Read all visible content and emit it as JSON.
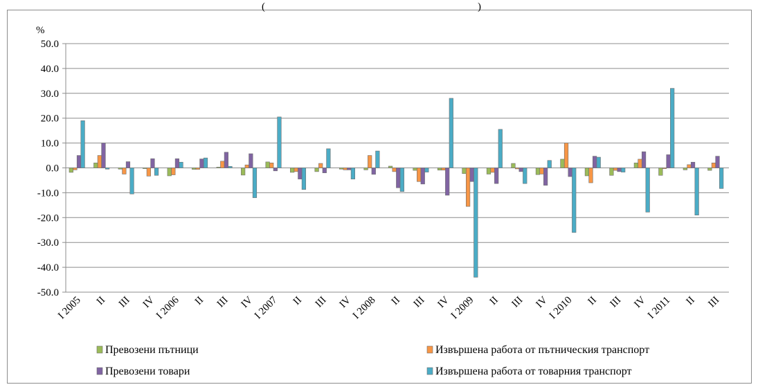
{
  "chart_data": {
    "type": "bar",
    "title": "",
    "top_text_fragment": "(",
    "top_text_fragment_right": ")",
    "ylabel": "%",
    "xlabel": "",
    "ylim": [
      -50,
      50
    ],
    "yticks": [
      "50.0",
      "40.0",
      "30.0",
      "20.0",
      "10.0",
      "0.0",
      "-10.0",
      "-20.0",
      "-30.0",
      "-40.0",
      "-50.0"
    ],
    "grid": true,
    "legend_position": "bottom",
    "categories": [
      "I 2005",
      "II",
      "III",
      "IV",
      "I 2006",
      "II",
      "III",
      "IV",
      "I 2007",
      "II",
      "III",
      "IV",
      "I 2008",
      "II",
      "III",
      "IV",
      "I 2009",
      "II",
      "III",
      "IV",
      "I 2010",
      "II",
      "III",
      "IV",
      "I 2011",
      "II",
      "III"
    ],
    "series": [
      {
        "name": "Превозени пътници",
        "color": "#9bbb59",
        "values": [
          -1.8,
          2.0,
          -0.5,
          -0.3,
          -3.2,
          -0.6,
          0.3,
          -2.9,
          2.4,
          -1.8,
          -1.5,
          -0.5,
          -0.8,
          0.7,
          -1.0,
          -0.9,
          -2.3,
          -2.5,
          1.8,
          -2.7,
          3.5,
          -3.2,
          -3.0,
          2.0,
          -3.0,
          -0.8,
          -1.0
        ]
      },
      {
        "name": "Извършена работа от пътническия транспорт",
        "color": "#f79646",
        "values": [
          -0.8,
          5.0,
          -2.5,
          -3.3,
          -2.8,
          -0.6,
          2.7,
          1.2,
          2.0,
          -1.5,
          1.8,
          -0.8,
          5.0,
          -1.5,
          -5.5,
          -0.9,
          -15.5,
          -1.8,
          -0.4,
          -2.5,
          10.0,
          -6.0,
          -1.0,
          3.5,
          -0.3,
          1.3,
          2.0
        ]
      },
      {
        "name": "Превозени товари",
        "color": "#8064a2",
        "values": [
          5.0,
          10.0,
          2.5,
          3.7,
          3.7,
          3.6,
          6.3,
          5.7,
          -1.2,
          -4.5,
          -2.0,
          -0.8,
          -2.6,
          -8.0,
          -6.5,
          -11.0,
          -5.5,
          -6.3,
          -1.5,
          -7.0,
          -3.5,
          4.7,
          -1.5,
          6.5,
          5.3,
          2.3,
          4.7
        ]
      },
      {
        "name": "Извършена работа от товарния транспорт",
        "color": "#4bacc6",
        "values": [
          19.0,
          -0.5,
          -10.5,
          -3.0,
          2.3,
          4.0,
          0.6,
          -12.0,
          20.5,
          -8.7,
          7.7,
          -4.5,
          6.8,
          -9.5,
          -1.7,
          28.0,
          -44.0,
          15.5,
          -6.3,
          3.0,
          -26.0,
          4.3,
          -1.7,
          -17.8,
          32.0,
          -19.0,
          -8.3
        ]
      }
    ]
  }
}
